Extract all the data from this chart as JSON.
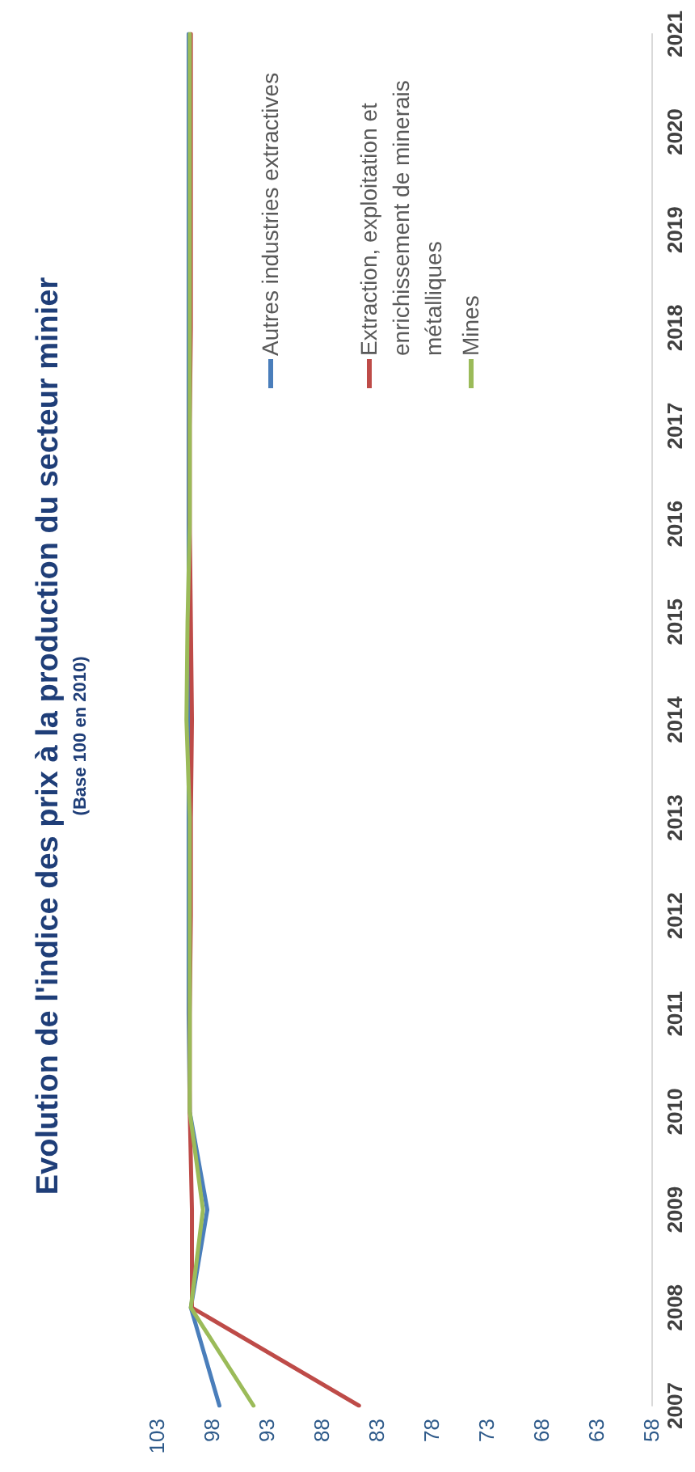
{
  "chart_data": {
    "type": "line",
    "title": "Evolution de l'indice des prix à la production du secteur minier",
    "subtitle": "(Base 100 en 2010)",
    "orientation": "horizontal",
    "categories": [
      "2021",
      "2020",
      "2019",
      "2018",
      "2017",
      "2016",
      "2015",
      "2014",
      "2013",
      "2012",
      "2011",
      "2010",
      "2009",
      "2008",
      "2007"
    ],
    "series": [
      {
        "name": "Autres industries extractives",
        "color": "#4a7ebb",
        "values": [
          100.1,
          100.1,
          100.1,
          100.1,
          100.1,
          100.1,
          100.1,
          100.1,
          100.1,
          100.1,
          100.1,
          100,
          98.4,
          99.9,
          97.3
        ]
      },
      {
        "name": "Extraction, exploitation et enrichissement de minerais métalliques",
        "color": "#be4b48",
        "values": [
          99.9,
          99.9,
          99.9,
          99.9,
          100,
          100,
          99.9,
          99.8,
          99.9,
          99.9,
          100,
          100,
          99.8,
          99.8,
          84.6
        ]
      },
      {
        "name": "Mines",
        "color": "#9bbb59",
        "values": [
          100,
          100,
          100,
          100,
          100,
          100,
          100.2,
          100.3,
          100,
          100,
          100,
          100,
          98.8,
          99.9,
          94.2
        ]
      }
    ],
    "xlim": [
      103,
      58
    ],
    "xticks": [
      103,
      98,
      93,
      88,
      83,
      78,
      73,
      68,
      63,
      58
    ],
    "grid": false,
    "legend": "top left",
    "marker": "none",
    "line_style": "solid"
  }
}
